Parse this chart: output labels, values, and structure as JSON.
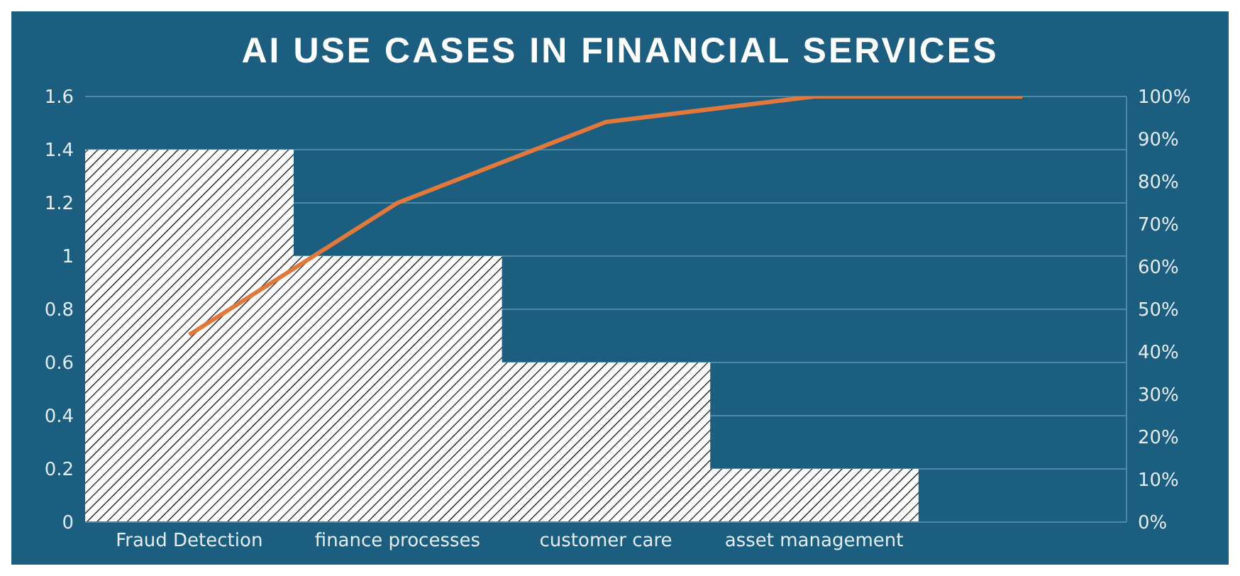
{
  "chart_data": {
    "type": "bar",
    "title": "AI USE CASES IN FINANCIAL SERVICES",
    "categories": [
      "Fraud Detection",
      "finance processes",
      "customer care",
      "asset management",
      null
    ],
    "series": [
      {
        "color": "#ffffff",
        "values": [
          1.4,
          1,
          0.6,
          0.2,
          null
        ]
      },
      {
        "type": "line",
        "axis": "y2",
        "color": "#e2793a",
        "values": [
          44,
          75,
          94,
          100,
          100
        ]
      }
    ],
    "ylim": [
      0,
      1.6
    ],
    "yticks": [
      0,
      0.2,
      0.4,
      0.6,
      0.8,
      1,
      1.2,
      1.4,
      1.6
    ],
    "y2lim": [
      0,
      100
    ],
    "y2ticks": [
      {
        "value": 0,
        "label": "0%"
      },
      {
        "value": 10,
        "label": "10%"
      },
      {
        "value": 20,
        "label": "20%"
      },
      {
        "value": 30,
        "label": "30%"
      },
      {
        "value": 40,
        "label": "40%"
      },
      {
        "value": 50,
        "label": "50%"
      },
      {
        "value": 60,
        "label": "60%"
      },
      {
        "value": 70,
        "label": "70%"
      },
      {
        "value": 80,
        "label": "80%"
      },
      {
        "value": 90,
        "label": "90%"
      },
      {
        "value": 100,
        "label": "100%"
      }
    ],
    "grid": "y",
    "legend": false,
    "marker": "none"
  }
}
